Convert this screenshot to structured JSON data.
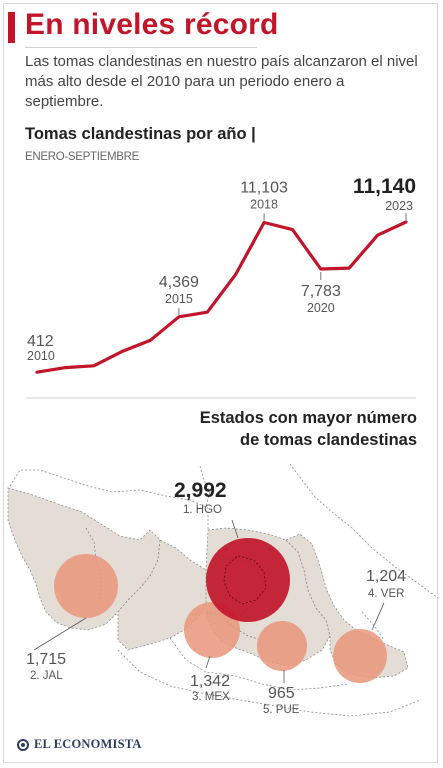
{
  "header": {
    "title": "En niveles récord",
    "intro": "Las tomas clandestinas en nuestro país alcanzaron el nivel más alto desde el 2010 para un periodo enero a septiembre."
  },
  "chart_data": [
    {
      "type": "line",
      "title": "Tomas clandestinas por año |",
      "subtitle": "ENERO-SEPTIEMBRE",
      "x": [
        2010,
        2011,
        2012,
        2013,
        2014,
        2015,
        2016,
        2017,
        2018,
        2019,
        2020,
        2021,
        2022,
        2023
      ],
      "series": [
        {
          "values": [
            412,
            740,
            870,
            1900,
            2700,
            4369,
            4700,
            7400,
            11103,
            10600,
            7783,
            7850,
            10200,
            11140
          ]
        }
      ],
      "labels": [
        {
          "x": 2010,
          "value": "412",
          "year": "2010"
        },
        {
          "x": 2015,
          "value": "4,369",
          "year": "2015"
        },
        {
          "x": 2018,
          "value": "11,103",
          "year": "2018"
        },
        {
          "x": 2020,
          "value": "7,783",
          "year": "2020"
        },
        {
          "x": 2023,
          "value": "11,140",
          "year": "2023",
          "emphasis": true
        }
      ],
      "ylim": [
        0,
        12000
      ],
      "line_color": "#c2152a",
      "grid": false
    },
    {
      "type": "bubble-map",
      "title_line1": "Estados con mayor número",
      "title_line2": "de tomas clandestinas",
      "states": [
        {
          "rank": "1. HGO",
          "value": 2992,
          "label": "2,992",
          "color": "#c2152a"
        },
        {
          "rank": "2. JAL",
          "value": 1715,
          "label": "1,715",
          "color": "#e9957a"
        },
        {
          "rank": "3. MEX",
          "value": 1342,
          "label": "1,342",
          "color": "#e9957a"
        },
        {
          "rank": "4. VER",
          "value": 1204,
          "label": "1,204",
          "color": "#e9957a"
        },
        {
          "rank": "5. PUE",
          "value": 965,
          "label": "965",
          "color": "#e9957a"
        }
      ]
    }
  ],
  "footer": {
    "brand": "EL ECONOMISTA"
  }
}
